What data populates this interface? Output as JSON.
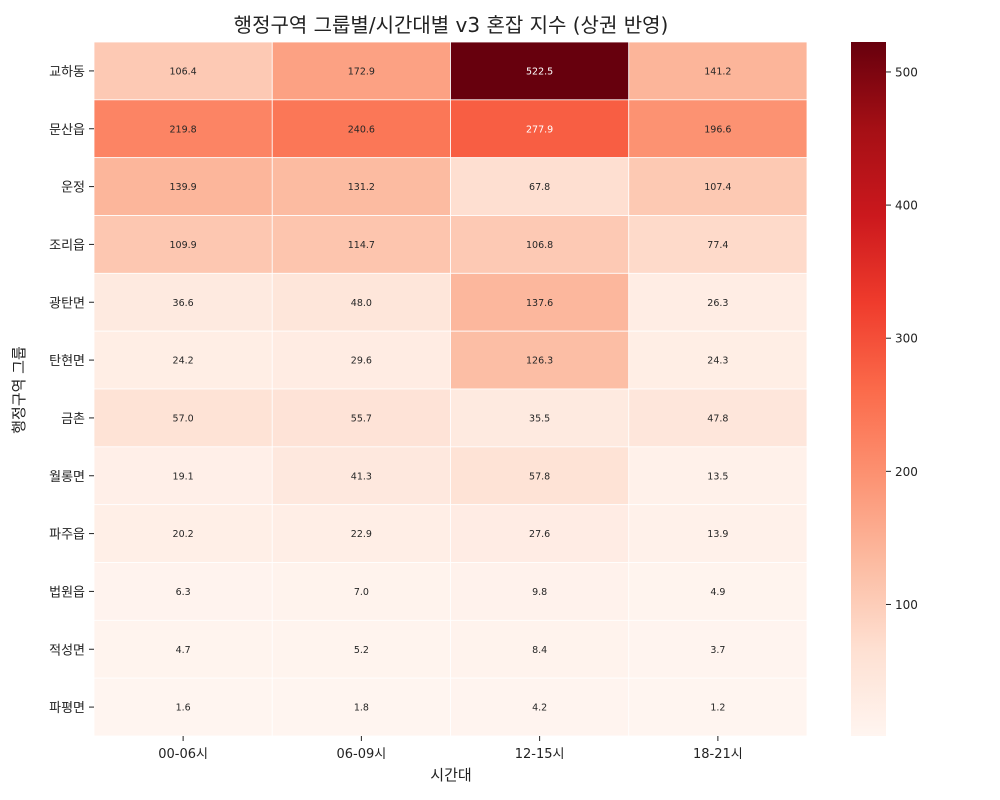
{
  "chart_data": {
    "type": "heatmap",
    "title": "행정구역 그룹별/시간대별 v3 혼잡 지수 (상권 반영)",
    "xlabel": "시간대",
    "ylabel": "행정구역 그룹",
    "x_categories": [
      "00-06시",
      "06-09시",
      "12-15시",
      "18-21시"
    ],
    "y_categories": [
      "교하동",
      "문산읍",
      "운정",
      "조리읍",
      "광탄면",
      "탄현면",
      "금촌",
      "월롱면",
      "파주읍",
      "법원읍",
      "적성면",
      "파평면"
    ],
    "values": [
      [
        106.4,
        172.9,
        522.5,
        141.2
      ],
      [
        219.8,
        240.6,
        277.9,
        196.6
      ],
      [
        139.9,
        131.2,
        67.8,
        107.4
      ],
      [
        109.9,
        114.7,
        106.8,
        77.4
      ],
      [
        36.6,
        48.0,
        137.6,
        26.3
      ],
      [
        24.2,
        29.6,
        126.3,
        24.3
      ],
      [
        57.0,
        55.7,
        35.5,
        47.8
      ],
      [
        19.1,
        41.3,
        57.8,
        13.5
      ],
      [
        20.2,
        22.9,
        27.6,
        13.9
      ],
      [
        6.3,
        7.0,
        9.8,
        4.9
      ],
      [
        4.7,
        5.2,
        8.4,
        3.7
      ],
      [
        1.6,
        1.8,
        4.2,
        1.2
      ]
    ],
    "colormap": "Reds",
    "color_range": [
      1.2,
      522.5
    ],
    "colorbar_ticks": [
      100,
      200,
      300,
      400,
      500
    ],
    "grid": false,
    "cell_borders": "white"
  }
}
